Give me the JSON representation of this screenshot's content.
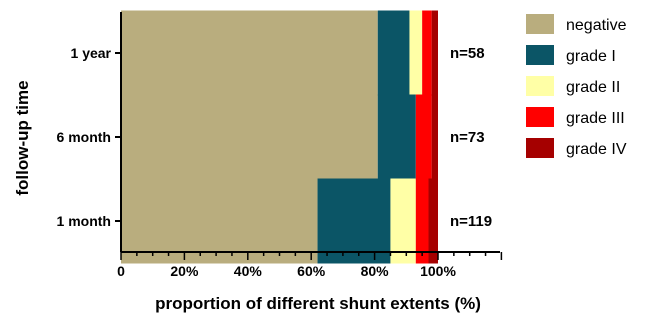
{
  "chart_data": {
    "type": "bar",
    "orientation": "horizontal",
    "stacked": true,
    "categories": [
      "1 year",
      "6 month",
      "1 month"
    ],
    "category_annotations": [
      "n=58",
      "n=73",
      "n=119"
    ],
    "series": [
      {
        "name": "negative",
        "color": "#b9ad7e",
        "values": [
          0.81,
          0.81,
          0.62
        ]
      },
      {
        "name": "grade I",
        "color": "#0b5566",
        "values": [
          0.1,
          0.12,
          0.23
        ]
      },
      {
        "name": "grade II",
        "color": "#ffffa6",
        "values": [
          0.04,
          0.0,
          0.08
        ]
      },
      {
        "name": "grade III",
        "color": "#ff0000",
        "values": [
          0.03,
          0.05,
          0.04
        ]
      },
      {
        "name": "grade IV",
        "color": "#a50000",
        "values": [
          0.02,
          0.02,
          0.03
        ]
      }
    ],
    "xlabel": "proportion of different shunt extents (%)",
    "ylabel": "follow-up time",
    "xlim": [
      0,
      1.2
    ],
    "xticks": [
      0,
      0.2,
      0.4,
      0.6,
      0.8,
      1.0
    ],
    "xtick_labels": [
      "0",
      "20%",
      "40%",
      "60%",
      "80%",
      "100%"
    ],
    "grid": false,
    "legend_position": "right"
  }
}
